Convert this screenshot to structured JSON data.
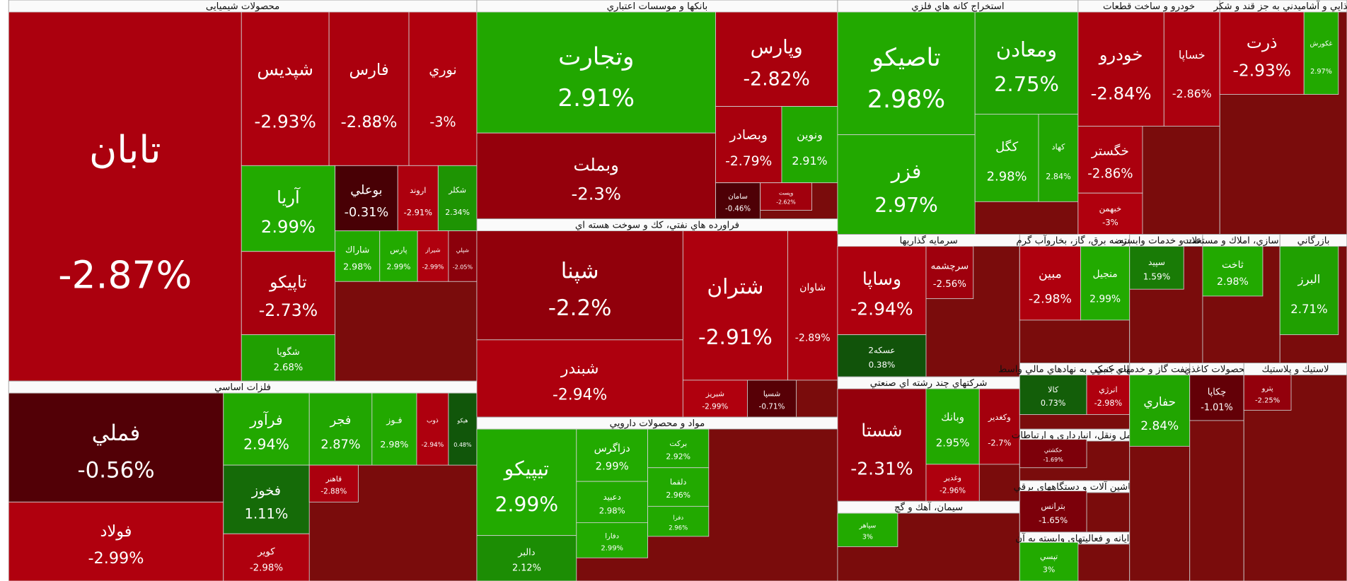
{
  "chart_data": {
    "type": "treemap",
    "sectors": [
      {
        "name": "محصولات شیمیایی",
        "tiles": [
          {
            "label": "تابان",
            "value": -2.87,
            "value_label": "-2.87%"
          },
          {
            "label": "شپدیس",
            "value": -2.93,
            "value_label": "-2.93%"
          },
          {
            "label": "فارس",
            "value": -2.88,
            "value_label": "-2.88%"
          },
          {
            "label": "نوري",
            "value": -3,
            "value_label": "-3%"
          },
          {
            "label": "آريا",
            "value": 2.99,
            "value_label": "2.99%"
          },
          {
            "label": "بوعلي",
            "value": -0.31,
            "value_label": "-0.31%"
          },
          {
            "label": "اروند",
            "value": -2.91,
            "value_label": "-2.91%"
          },
          {
            "label": "شكلر",
            "value": 2.34,
            "value_label": "2.34%"
          },
          {
            "label": "تاپيكو",
            "value": -2.73,
            "value_label": "-2.73%"
          },
          {
            "label": "شگويا",
            "value": 2.68,
            "value_label": "2.68%"
          },
          {
            "label": "شاراك",
            "value": 2.98,
            "value_label": "2.98%"
          },
          {
            "label": "پارس",
            "value": 2.99,
            "value_label": "2.99%"
          },
          {
            "label": "شيراز",
            "value": -2.99,
            "value_label": "-2.99%"
          },
          {
            "label": "شپلي",
            "value": -2.05,
            "value_label": "-2.05%"
          }
        ]
      },
      {
        "name": "فلزات اساسي",
        "tiles": [
          {
            "label": "فملي",
            "value": -0.56,
            "value_label": "-0.56%"
          },
          {
            "label": "فولاد",
            "value": -2.99,
            "value_label": "-2.99%"
          },
          {
            "label": "فرآور",
            "value": 2.94,
            "value_label": "2.94%"
          },
          {
            "label": "فخوز",
            "value": 1.11,
            "value_label": "1.11%"
          },
          {
            "label": "كوير",
            "value": -2.98,
            "value_label": "-2.98%"
          },
          {
            "label": "فجر",
            "value": 2.87,
            "value_label": "2.87%"
          },
          {
            "label": "فـوز",
            "value": 2.98,
            "value_label": "2.98%"
          },
          {
            "label": "ذوب",
            "value": -2.94,
            "value_label": "-2.94%"
          },
          {
            "label": "هيكو",
            "value": 0.48,
            "value_label": "0.48%"
          },
          {
            "label": "قاهنر",
            "value": -2.88,
            "value_label": "-2.88%"
          }
        ]
      },
      {
        "name": "بانكها و موسسات اعتباري",
        "tiles": [
          {
            "label": "وتجارت",
            "value": 2.91,
            "value_label": "2.91%"
          },
          {
            "label": "وبملت",
            "value": -2.3,
            "value_label": "-2.3%"
          },
          {
            "label": "وپارس",
            "value": -2.82,
            "value_label": "-2.82%"
          },
          {
            "label": "وبصادر",
            "value": -2.79,
            "value_label": "-2.79%"
          },
          {
            "label": "ونوين",
            "value": 2.91,
            "value_label": "2.91%"
          },
          {
            "label": "سامان",
            "value": -0.46,
            "value_label": "-0.46%"
          },
          {
            "label": "وپست",
            "value": -2.62,
            "value_label": "-2.62%"
          }
        ]
      },
      {
        "name": "فراورده هاي نفتي، كك و سوخت هسته اي",
        "tiles": [
          {
            "label": "شپنا",
            "value": -2.2,
            "value_label": "-2.2%"
          },
          {
            "label": "شبندر",
            "value": -2.94,
            "value_label": "-2.94%"
          },
          {
            "label": "شتران",
            "value": -2.91,
            "value_label": "-2.91%"
          },
          {
            "label": "شاوان",
            "value": -2.89,
            "value_label": "-2.89%"
          },
          {
            "label": "شبريز",
            "value": -2.99,
            "value_label": "-2.99%"
          },
          {
            "label": "شسپا",
            "value": -0.71,
            "value_label": "-0.71%"
          }
        ]
      },
      {
        "name": "مواد و محصولات دارويي",
        "tiles": [
          {
            "label": "تيپيكو",
            "value": 2.99,
            "value_label": "2.99%"
          },
          {
            "label": "دالبر",
            "value": 2.12,
            "value_label": "2.12%"
          },
          {
            "label": "دزاگرس",
            "value": 2.99,
            "value_label": "2.99%"
          },
          {
            "label": "دعبيد",
            "value": 2.98,
            "value_label": "2.98%"
          },
          {
            "label": "دفارا",
            "value": 2.99,
            "value_label": "2.99%"
          },
          {
            "label": "بركت",
            "value": 2.92,
            "value_label": "2.92%"
          },
          {
            "label": "دلقما",
            "value": 2.96,
            "value_label": "2.96%"
          },
          {
            "label": "دفرا",
            "value": 2.96,
            "value_label": "2.96%"
          }
        ]
      },
      {
        "name": "استخراج كانه هاي فلزي",
        "tiles": [
          {
            "label": "تاصيكو",
            "value": 2.98,
            "value_label": "2.98%"
          },
          {
            "label": "فزر",
            "value": 2.97,
            "value_label": "2.97%"
          },
          {
            "label": "ومعادن",
            "value": 2.75,
            "value_label": "2.75%"
          },
          {
            "label": "كگل",
            "value": 2.98,
            "value_label": "2.98%"
          },
          {
            "label": "كهاد",
            "value": 2.84,
            "value_label": "2.84%"
          }
        ]
      },
      {
        "name": "سرمايه گذاريها",
        "tiles": [
          {
            "label": "وساپا",
            "value": -2.94,
            "value_label": "-2.94%"
          },
          {
            "label": "سرچشمه",
            "value": -2.56,
            "value_label": "-2.56%"
          },
          {
            "label": "عسكه2",
            "value": 0.38,
            "value_label": "0.38%"
          }
        ]
      },
      {
        "name": "شركتهاي چند رشته اي صنعتي",
        "tiles": [
          {
            "label": "شستا",
            "value": -2.31,
            "value_label": "-2.31%"
          },
          {
            "label": "وبانك",
            "value": 2.95,
            "value_label": "2.95%"
          },
          {
            "label": "وكغدير",
            "value": -2.7,
            "value_label": "-2.7%"
          },
          {
            "label": "وغدير",
            "value": -2.96,
            "value_label": "-2.96%"
          }
        ]
      },
      {
        "name": "سيمان، آهك و گچ",
        "tiles": [
          {
            "label": "سپاهر",
            "value": 3,
            "value_label": "3%"
          }
        ]
      },
      {
        "name": "عرضه برق، گاز، بخاروآب گرم",
        "tiles": [
          {
            "label": "مبين",
            "value": -2.98,
            "value_label": "-2.98%"
          },
          {
            "label": "منجيل",
            "value": 2.99,
            "value_label": "2.99%"
          }
        ]
      },
      {
        "name": "خودرو و ساخت قطعات",
        "tiles": [
          {
            "label": "خودرو",
            "value": -2.84,
            "value_label": "-2.84%"
          },
          {
            "label": "خساپا",
            "value": -2.86,
            "value_label": "-2.86%"
          },
          {
            "label": "خگستر",
            "value": -2.86,
            "value_label": "-2.86%"
          },
          {
            "label": "خبهمن",
            "value": -3,
            "value_label": "-3%"
          }
        ]
      },
      {
        "name": "غذايي و آشاميدني به جز قند و شكر",
        "tiles": [
          {
            "label": "ذرت",
            "value": -2.93,
            "value_label": "-2.93%"
          },
          {
            "label": "غكورش",
            "value": 2.97,
            "value_label": "2.97%"
          }
        ]
      },
      {
        "name": "زراعت و خدمات وابسته",
        "tiles": [
          {
            "label": "سپيد",
            "value": 1.59,
            "value_label": "1.59%"
          }
        ]
      },
      {
        "name": "انبوه سازي، املاك و مستغلات",
        "tiles": [
          {
            "label": "ثاخت",
            "value": 2.98,
            "value_label": "2.98%"
          }
        ]
      },
      {
        "name": "بازرگاني",
        "tiles": [
          {
            "label": "البرز",
            "value": 2.71,
            "value_label": "2.71%"
          }
        ]
      },
      {
        "name": "فعاليتهاي كمكي به نهادهاي مالي واسط",
        "tiles": [
          {
            "label": "كالا",
            "value": 0.73,
            "value_label": "0.73%"
          },
          {
            "label": "انرژي",
            "value": -2.98,
            "value_label": "-2.98%"
          }
        ]
      },
      {
        "name": "حمل ونقل، انبارداري و ارتباطات",
        "tiles": [
          {
            "label": "حكشتي",
            "value": -1.69,
            "value_label": "-1.69%"
          }
        ]
      },
      {
        "name": "ماشين آلات و دستگاههاي برقي",
        "tiles": [
          {
            "label": "بترانس",
            "value": -1.65,
            "value_label": "-1.65%"
          }
        ]
      },
      {
        "name": "رايانه و فعاليتهاي وابسته به آن",
        "tiles": [
          {
            "label": "تپسي",
            "value": 3,
            "value_label": "3%"
          }
        ]
      },
      {
        "name": "استخراج نفت گاز و خدمات جنبي",
        "tiles": [
          {
            "label": "حفاري",
            "value": 2.84,
            "value_label": "2.84%"
          }
        ]
      },
      {
        "name": "محصولات كاغذي",
        "tiles": [
          {
            "label": "چكاپا",
            "value": -1.01,
            "value_label": "-1.01%"
          }
        ]
      },
      {
        "name": "لاستيك و پلاستيك",
        "tiles": [
          {
            "label": "پترو",
            "value": -2.25,
            "value_label": "-2.25%"
          }
        ]
      }
    ]
  }
}
